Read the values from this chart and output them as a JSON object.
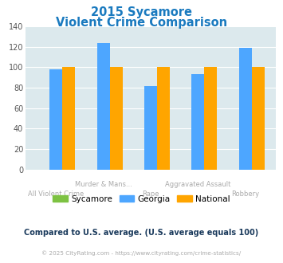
{
  "title_line1": "2015 Sycamore",
  "title_line2": "Violent Crime Comparison",
  "x_labels_top": [
    "",
    "Murder & Mans...",
    "",
    "Aggravated Assault",
    ""
  ],
  "x_labels_bottom": [
    "All Violent Crime",
    "",
    "Rape",
    "",
    "Robbery"
  ],
  "groups": [
    "All Violent Crime",
    "Murder & Mans...",
    "Rape",
    "Aggravated Assault",
    "Robbery"
  ],
  "sycamore": [
    0,
    0,
    0,
    0,
    0
  ],
  "georgia": [
    98,
    124,
    82,
    93,
    119
  ],
  "national": [
    100,
    100,
    100,
    100,
    100
  ],
  "color_sycamore": "#7dc242",
  "color_georgia": "#4da6ff",
  "color_national": "#ffa500",
  "ylim": [
    0,
    140
  ],
  "yticks": [
    0,
    20,
    40,
    60,
    80,
    100,
    120,
    140
  ],
  "bg_color": "#dce9ed",
  "fig_bg": "#ffffff",
  "title_color": "#1a7abf",
  "label_color": "#aaaaaa",
  "footer_text": "Compared to U.S. average. (U.S. average equals 100)",
  "copyright_text": "© 2025 CityRating.com - https://www.cityrating.com/crime-statistics/",
  "footer_color": "#1a3a5c",
  "copyright_color": "#aaaaaa",
  "legend_labels": [
    "Sycamore",
    "Georgia",
    "National"
  ]
}
